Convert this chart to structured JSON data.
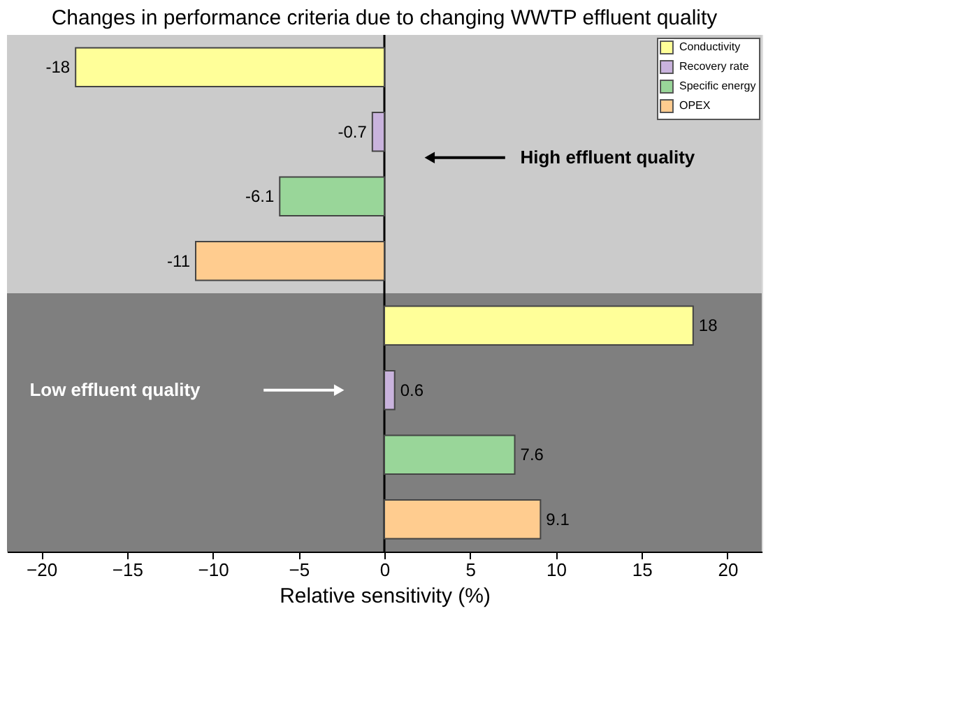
{
  "chart_data": {
    "type": "bar",
    "orientation": "horizontal",
    "title": "Changes in performance criteria due to changing WWTP effluent quality",
    "xlabel": "Relative sensitivity (%)",
    "categories": [
      null,
      null,
      null,
      null,
      null,
      null,
      null,
      null
    ],
    "series": [
      {
        "name": "Conductivity",
        "color": "#ffff99",
        "values": [
          -18,
          null,
          null,
          null,
          18,
          null,
          null,
          null
        ]
      },
      {
        "name": "Recovery rate",
        "color": "#c9b3dd",
        "values": [
          null,
          -0.7,
          null,
          null,
          null,
          0.6,
          null,
          null
        ]
      },
      {
        "name": "Specific energy",
        "color": "#99d699",
        "values": [
          null,
          null,
          -6.1,
          null,
          null,
          null,
          7.6,
          null
        ]
      },
      {
        "name": "OPEX",
        "color": "#ffcc8f",
        "values": [
          null,
          null,
          null,
          -11,
          null,
          null,
          null,
          9.1
        ]
      }
    ],
    "data_labels": true,
    "xlim": [
      -22,
      22
    ],
    "xticks": [
      -20,
      -15,
      -10,
      -5,
      0,
      5,
      10,
      15,
      20
    ],
    "annotations": [
      "High effluent quality",
      "Low effluent quality"
    ],
    "ref_lines": [
      {
        "axis": "x",
        "value": 0,
        "color": "#000000"
      }
    ],
    "legend": "top right",
    "tick_labels": "x"
  }
}
